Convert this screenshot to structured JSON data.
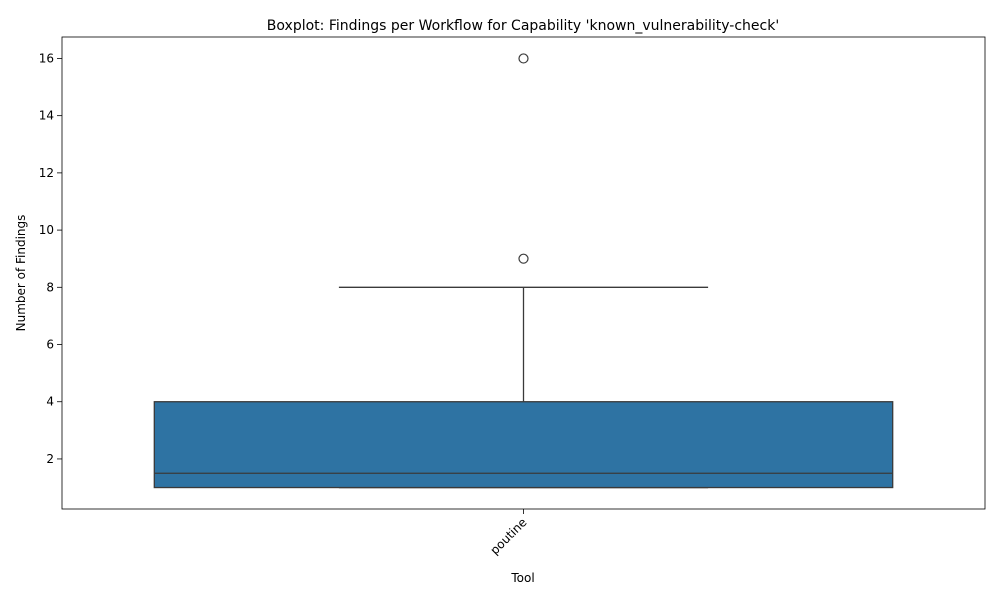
{
  "chart_data": {
    "type": "boxplot",
    "title": "Boxplot: Findings per Workflow for Capability 'known_vulnerability-check'",
    "xlabel": "Tool",
    "ylabel": "Number of Findings",
    "categories": [
      "poutine"
    ],
    "ylim": [
      0.25,
      16.75
    ],
    "yticks": [
      2,
      4,
      6,
      8,
      10,
      12,
      14,
      16
    ],
    "grid": false,
    "box_color": "#2e73a3",
    "line_color": "#3a3a3a",
    "boxes": [
      {
        "category": "poutine",
        "whisker_low": 1,
        "q1": 1,
        "median": 1.5,
        "q3": 4,
        "whisker_high": 8,
        "outliers": [
          9,
          16
        ]
      }
    ]
  }
}
